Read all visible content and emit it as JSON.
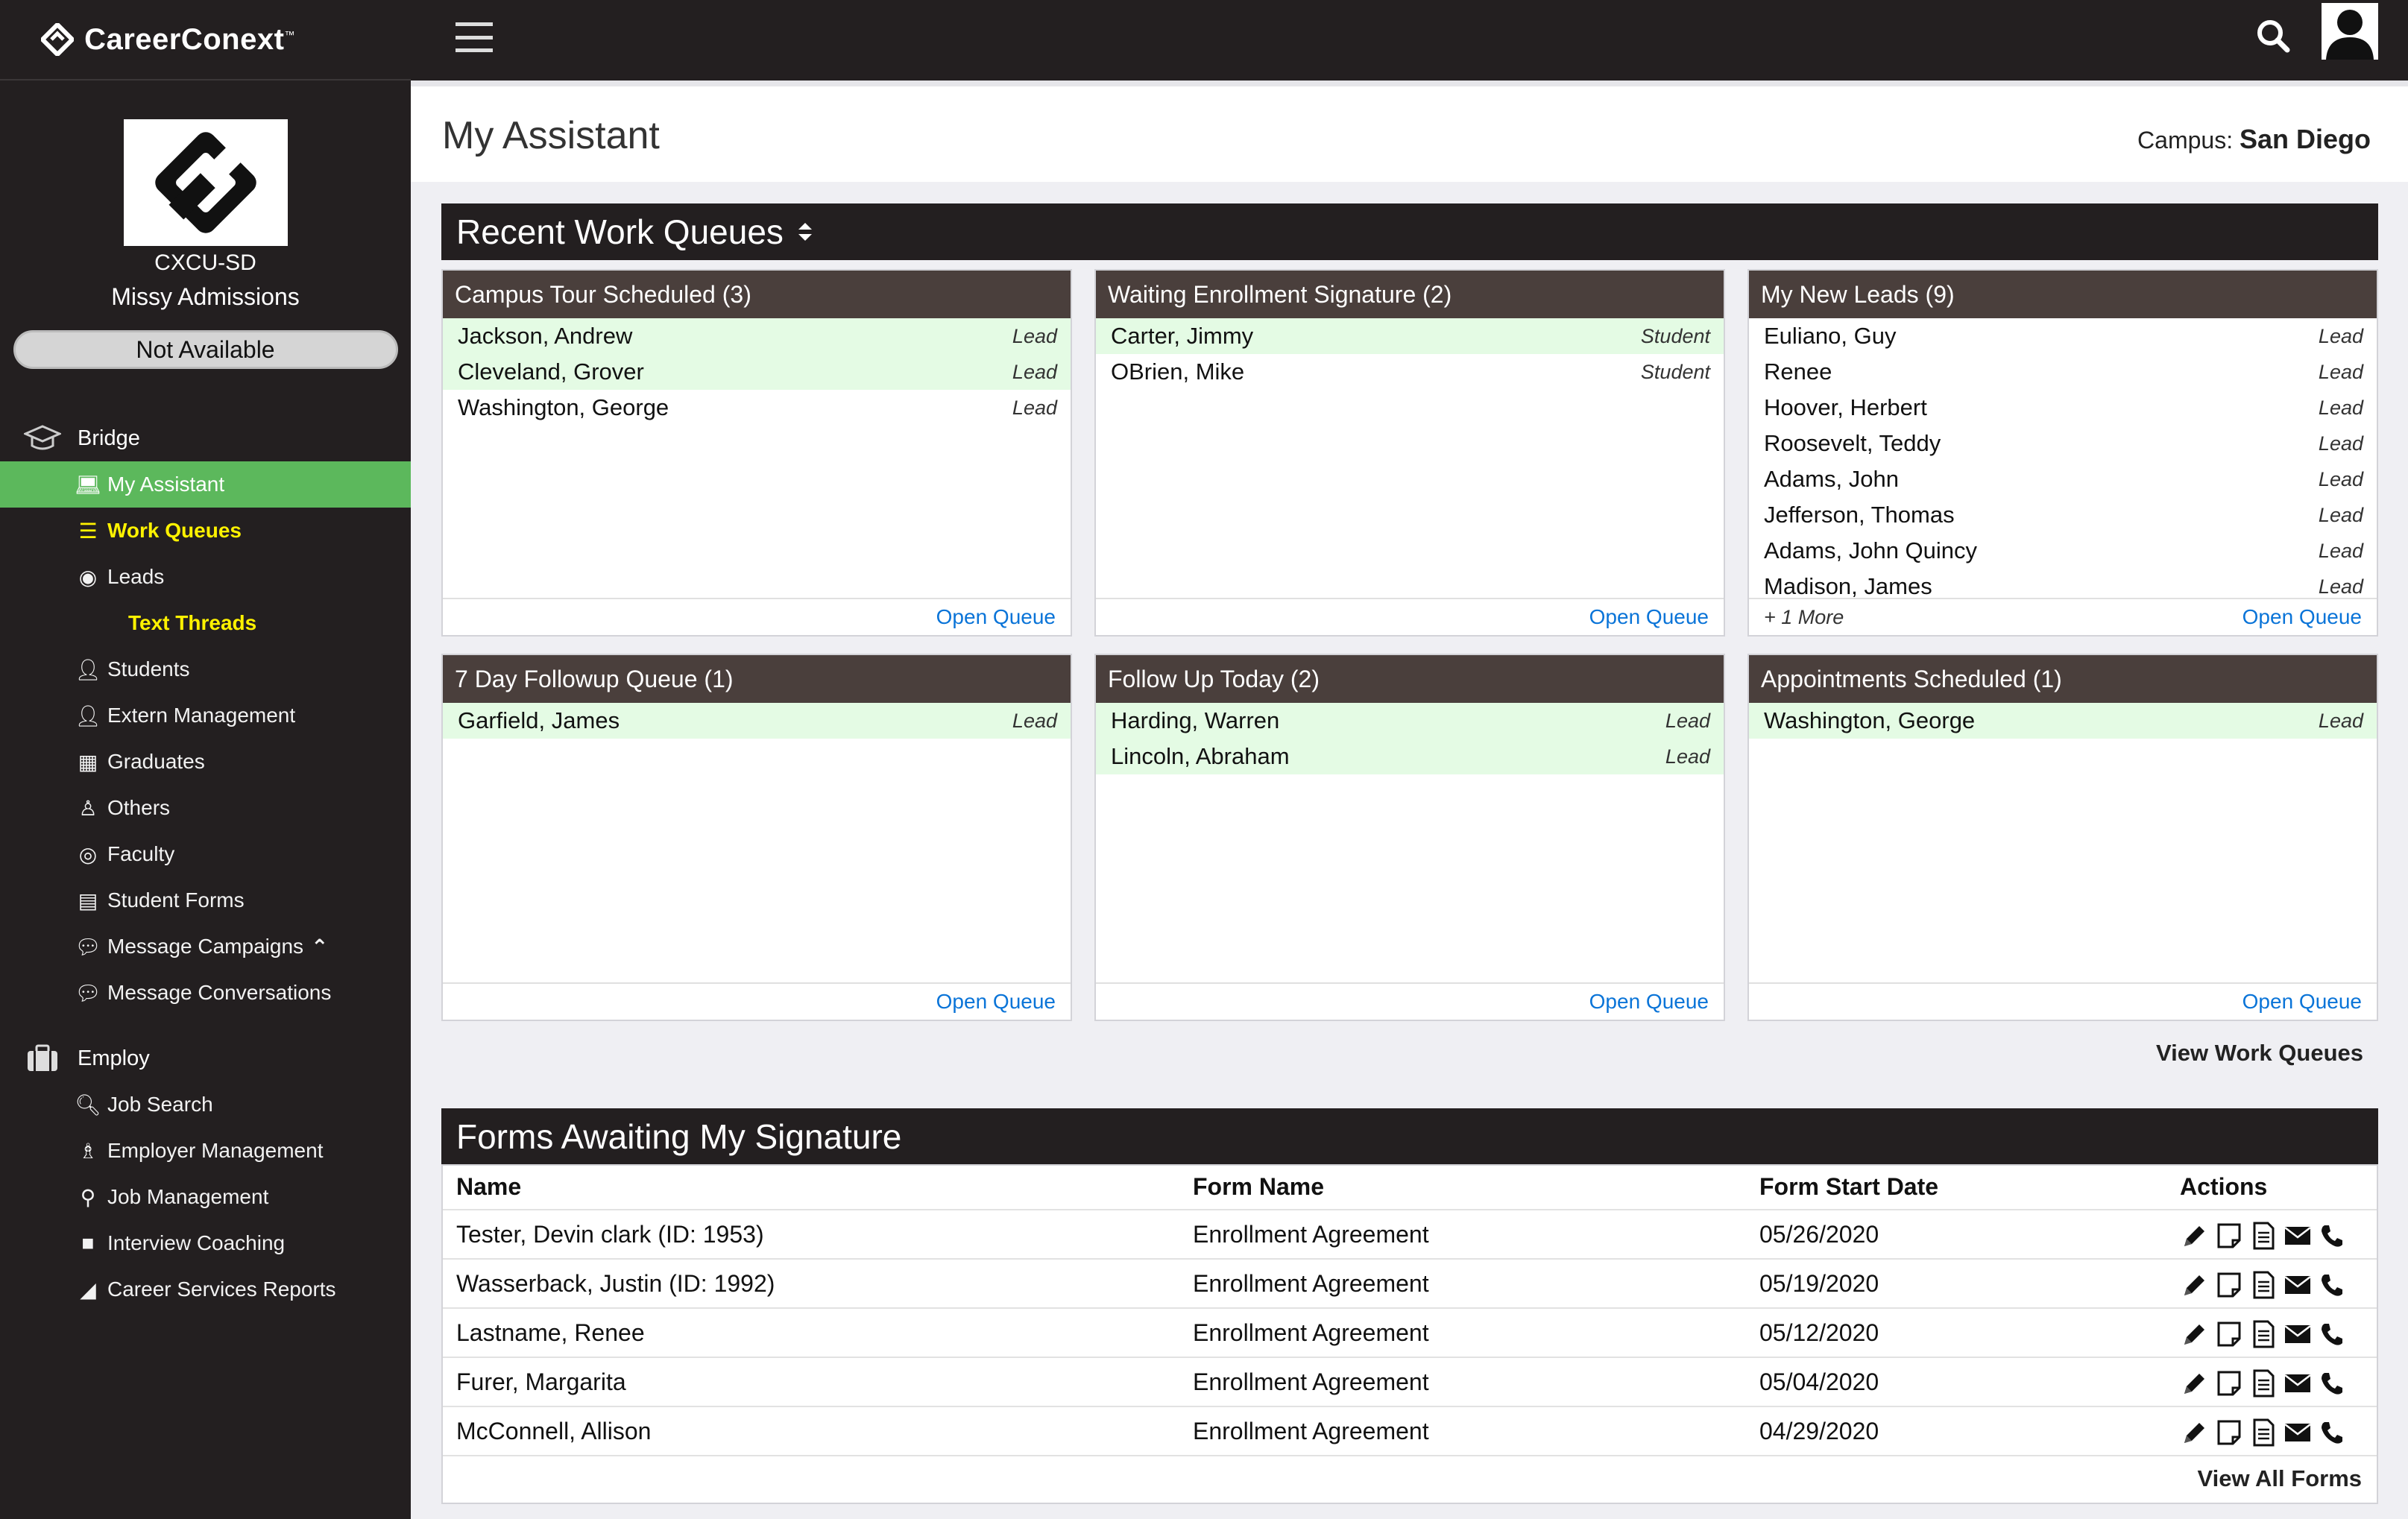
{
  "brand": {
    "name": "CareerConext",
    "tm": "™"
  },
  "profile": {
    "org_code": "CXCU-SD",
    "user_name": "Missy Admissions",
    "status": "Not Available"
  },
  "nav": {
    "bridge_label": "Bridge",
    "employ_label": "Employ",
    "bridge_items": [
      {
        "label": "My Assistant",
        "icon": "laptop-icon"
      },
      {
        "label": "Work Queues",
        "icon": "list-icon"
      },
      {
        "label": "Leads",
        "icon": "user-circle-icon"
      },
      {
        "label": "Text Threads"
      },
      {
        "label": "Students",
        "icon": "user-icon"
      },
      {
        "label": "Extern Management",
        "icon": "user-plus-icon"
      },
      {
        "label": "Graduates",
        "icon": "graduates-icon"
      },
      {
        "label": "Others",
        "icon": "user-outline-icon"
      },
      {
        "label": "Faculty",
        "icon": "faculty-icon"
      },
      {
        "label": "Student Forms",
        "icon": "document-icon"
      },
      {
        "label": "Message Campaigns",
        "icon": "chat-bubble-icon"
      },
      {
        "label": "Message Conversations",
        "icon": "chat-bubbles-icon"
      }
    ],
    "employ_items": [
      {
        "label": "Job Search",
        "icon": "search-plus-icon"
      },
      {
        "label": "Employer Management",
        "icon": "employer-icon"
      },
      {
        "label": "Job Management",
        "icon": "pin-icon"
      },
      {
        "label": "Interview Coaching",
        "icon": "video-icon"
      },
      {
        "label": "Career Services Reports",
        "icon": "area-chart-icon"
      }
    ]
  },
  "header": {
    "title": "My Assistant",
    "campus_label": "Campus:",
    "campus_value": "San Diego"
  },
  "work_queues": {
    "title": "Recent Work Queues",
    "open_label": "Open Queue",
    "view_all": "View Work Queues",
    "queues": [
      {
        "title": "Campus Tour Scheduled (3)",
        "rows": [
          {
            "name": "Jackson, Andrew",
            "type": "Lead",
            "hl": true
          },
          {
            "name": "Cleveland, Grover",
            "type": "Lead",
            "hl": true
          },
          {
            "name": "Washington, George",
            "type": "Lead",
            "hl": false
          }
        ]
      },
      {
        "title": "Waiting Enrollment Signature (2)",
        "rows": [
          {
            "name": "Carter, Jimmy",
            "type": "Student",
            "hl": true
          },
          {
            "name": "OBrien, Mike",
            "type": "Student",
            "hl": false
          }
        ]
      },
      {
        "title": "My New Leads (9)",
        "more": "+ 1 More",
        "rows": [
          {
            "name": "Euliano, Guy",
            "type": "Lead",
            "hl": false
          },
          {
            "name": "Renee",
            "type": "Lead",
            "hl": false
          },
          {
            "name": "Hoover, Herbert",
            "type": "Lead",
            "hl": false
          },
          {
            "name": "Roosevelt, Teddy",
            "type": "Lead",
            "hl": false
          },
          {
            "name": "Adams, John",
            "type": "Lead",
            "hl": false
          },
          {
            "name": "Jefferson, Thomas",
            "type": "Lead",
            "hl": false
          },
          {
            "name": "Adams, John Quincy",
            "type": "Lead",
            "hl": false
          },
          {
            "name": "Madison, James",
            "type": "Lead",
            "hl": false
          }
        ]
      },
      {
        "title": "7 Day Followup Queue (1)",
        "rows": [
          {
            "name": "Garfield, James",
            "type": "Lead",
            "hl": true
          }
        ]
      },
      {
        "title": "Follow Up Today (2)",
        "rows": [
          {
            "name": "Harding, Warren",
            "type": "Lead",
            "hl": true
          },
          {
            "name": "Lincoln, Abraham",
            "type": "Lead",
            "hl": true
          }
        ]
      },
      {
        "title": "Appointments Scheduled (1)",
        "rows": [
          {
            "name": "Washington, George",
            "type": "Lead",
            "hl": true
          }
        ]
      }
    ]
  },
  "forms": {
    "title": "Forms Awaiting My Signature",
    "columns": [
      "Name",
      "Form Name",
      "Form Start Date",
      "Actions"
    ],
    "rows": [
      {
        "name": "Tester, Devin clark (ID: 1953)",
        "form": "Enrollment Agreement",
        "date": "05/26/2020"
      },
      {
        "name": "Wasserback, Justin (ID: 1992)",
        "form": "Enrollment Agreement",
        "date": "05/19/2020"
      },
      {
        "name": "Lastname, Renee",
        "form": "Enrollment Agreement",
        "date": "05/12/2020"
      },
      {
        "name": "Furer, Margarita",
        "form": "Enrollment Agreement",
        "date": "05/04/2020"
      },
      {
        "name": "McConnell, Allison",
        "form": "Enrollment Agreement",
        "date": "04/29/2020"
      }
    ],
    "view_all": "View All Forms"
  },
  "colors": {
    "sidebar_bg": "#231f20",
    "active_green": "#5cb85c",
    "highlight_yellow": "#fff200",
    "link_blue": "#0a74d8",
    "row_highlight": "#e4fbe4"
  }
}
